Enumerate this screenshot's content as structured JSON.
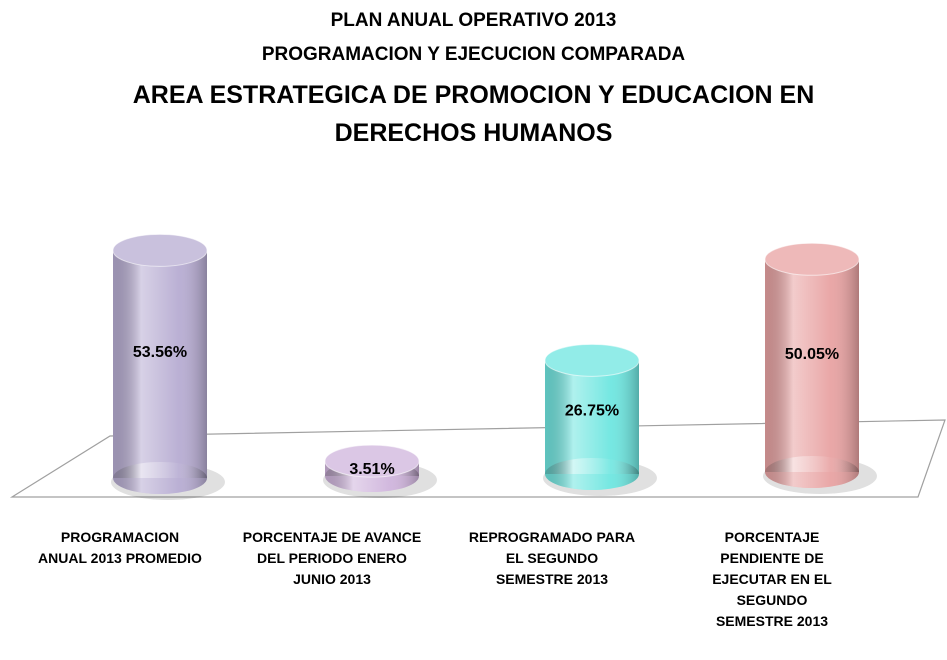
{
  "chart_data": {
    "type": "bar",
    "title": [
      "PLAN ANUAL OPERATIVO 2013",
      "PROGRAMACION Y EJECUCION COMPARADA",
      "AREA ESTRATEGICA DE PROMOCION Y EDUCACION EN DERECHOS HUMANOS"
    ],
    "categories": [
      "PROGRAMACION ANUAL 2013 PROMEDIO",
      "PORCENTAJE DE AVANCE DEL PERIODO ENERO JUNIO 2013",
      "REPROGRAMADO PARA EL SEGUNDO SEMESTRE 2013",
      "PORCENTAJE PENDIENTE DE EJECUTAR EN EL SEGUNDO SEMESTRE 2013"
    ],
    "values": [
      53.56,
      3.51,
      26.75,
      50.05
    ],
    "value_labels": [
      "53.56%",
      "3.51%",
      "26.75%",
      "50.05%"
    ],
    "colors": [
      "#b7acd2",
      "#cfb4dc",
      "#6ee6e0",
      "#e8a2a2"
    ]
  }
}
